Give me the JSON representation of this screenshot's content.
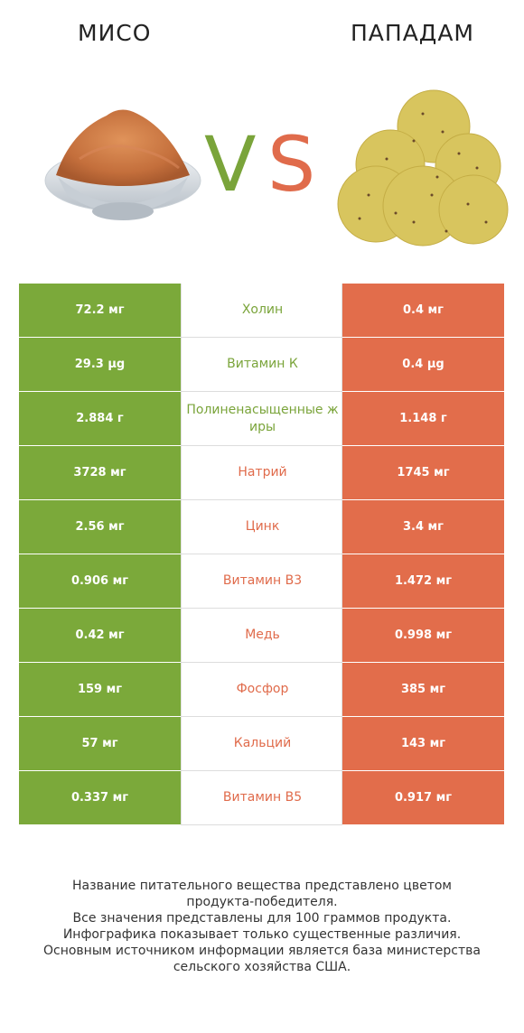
{
  "header": {
    "left_title": "МИСО",
    "right_title": "ПАПАДАМ",
    "vs_v": "V",
    "vs_s": "S"
  },
  "colors": {
    "winner_left": "#7ba93a",
    "winner_right": "#e26d4b"
  },
  "rows": [
    {
      "left": "72.2 мг",
      "name": "Холин",
      "right": "0.4 мг",
      "winner": "left"
    },
    {
      "left": "29.3 µg",
      "name": "Витамин К",
      "right": "0.4 µg",
      "winner": "left"
    },
    {
      "left": "2.884 г",
      "name": "Полиненасыщенные жиры",
      "right": "1.148 г",
      "winner": "left"
    },
    {
      "left": "3728 мг",
      "name": "Натрий",
      "right": "1745 мг",
      "winner": "right"
    },
    {
      "left": "2.56 мг",
      "name": "Цинк",
      "right": "3.4 мг",
      "winner": "right"
    },
    {
      "left": "0.906 мг",
      "name": "Витамин B3",
      "right": "1.472 мг",
      "winner": "right"
    },
    {
      "left": "0.42 мг",
      "name": "Медь",
      "right": "0.998 мг",
      "winner": "right"
    },
    {
      "left": "159 мг",
      "name": "Фосфор",
      "right": "385 мг",
      "winner": "right"
    },
    {
      "left": "57 мг",
      "name": "Кальций",
      "right": "143 мг",
      "winner": "right"
    },
    {
      "left": "0.337 мг",
      "name": "Витамин B5",
      "right": "0.917 мг",
      "winner": "right"
    }
  ],
  "footer": {
    "line1": "Название питательного вещества представлено цветом",
    "line2": "продукта-победителя.",
    "line3": "Все значения представлены для 100 граммов продукта.",
    "line4": "Инфографика показывает только существенные различия.",
    "line5": "Основным источником информации является база министерства",
    "line6": "сельского хозяйства США."
  }
}
